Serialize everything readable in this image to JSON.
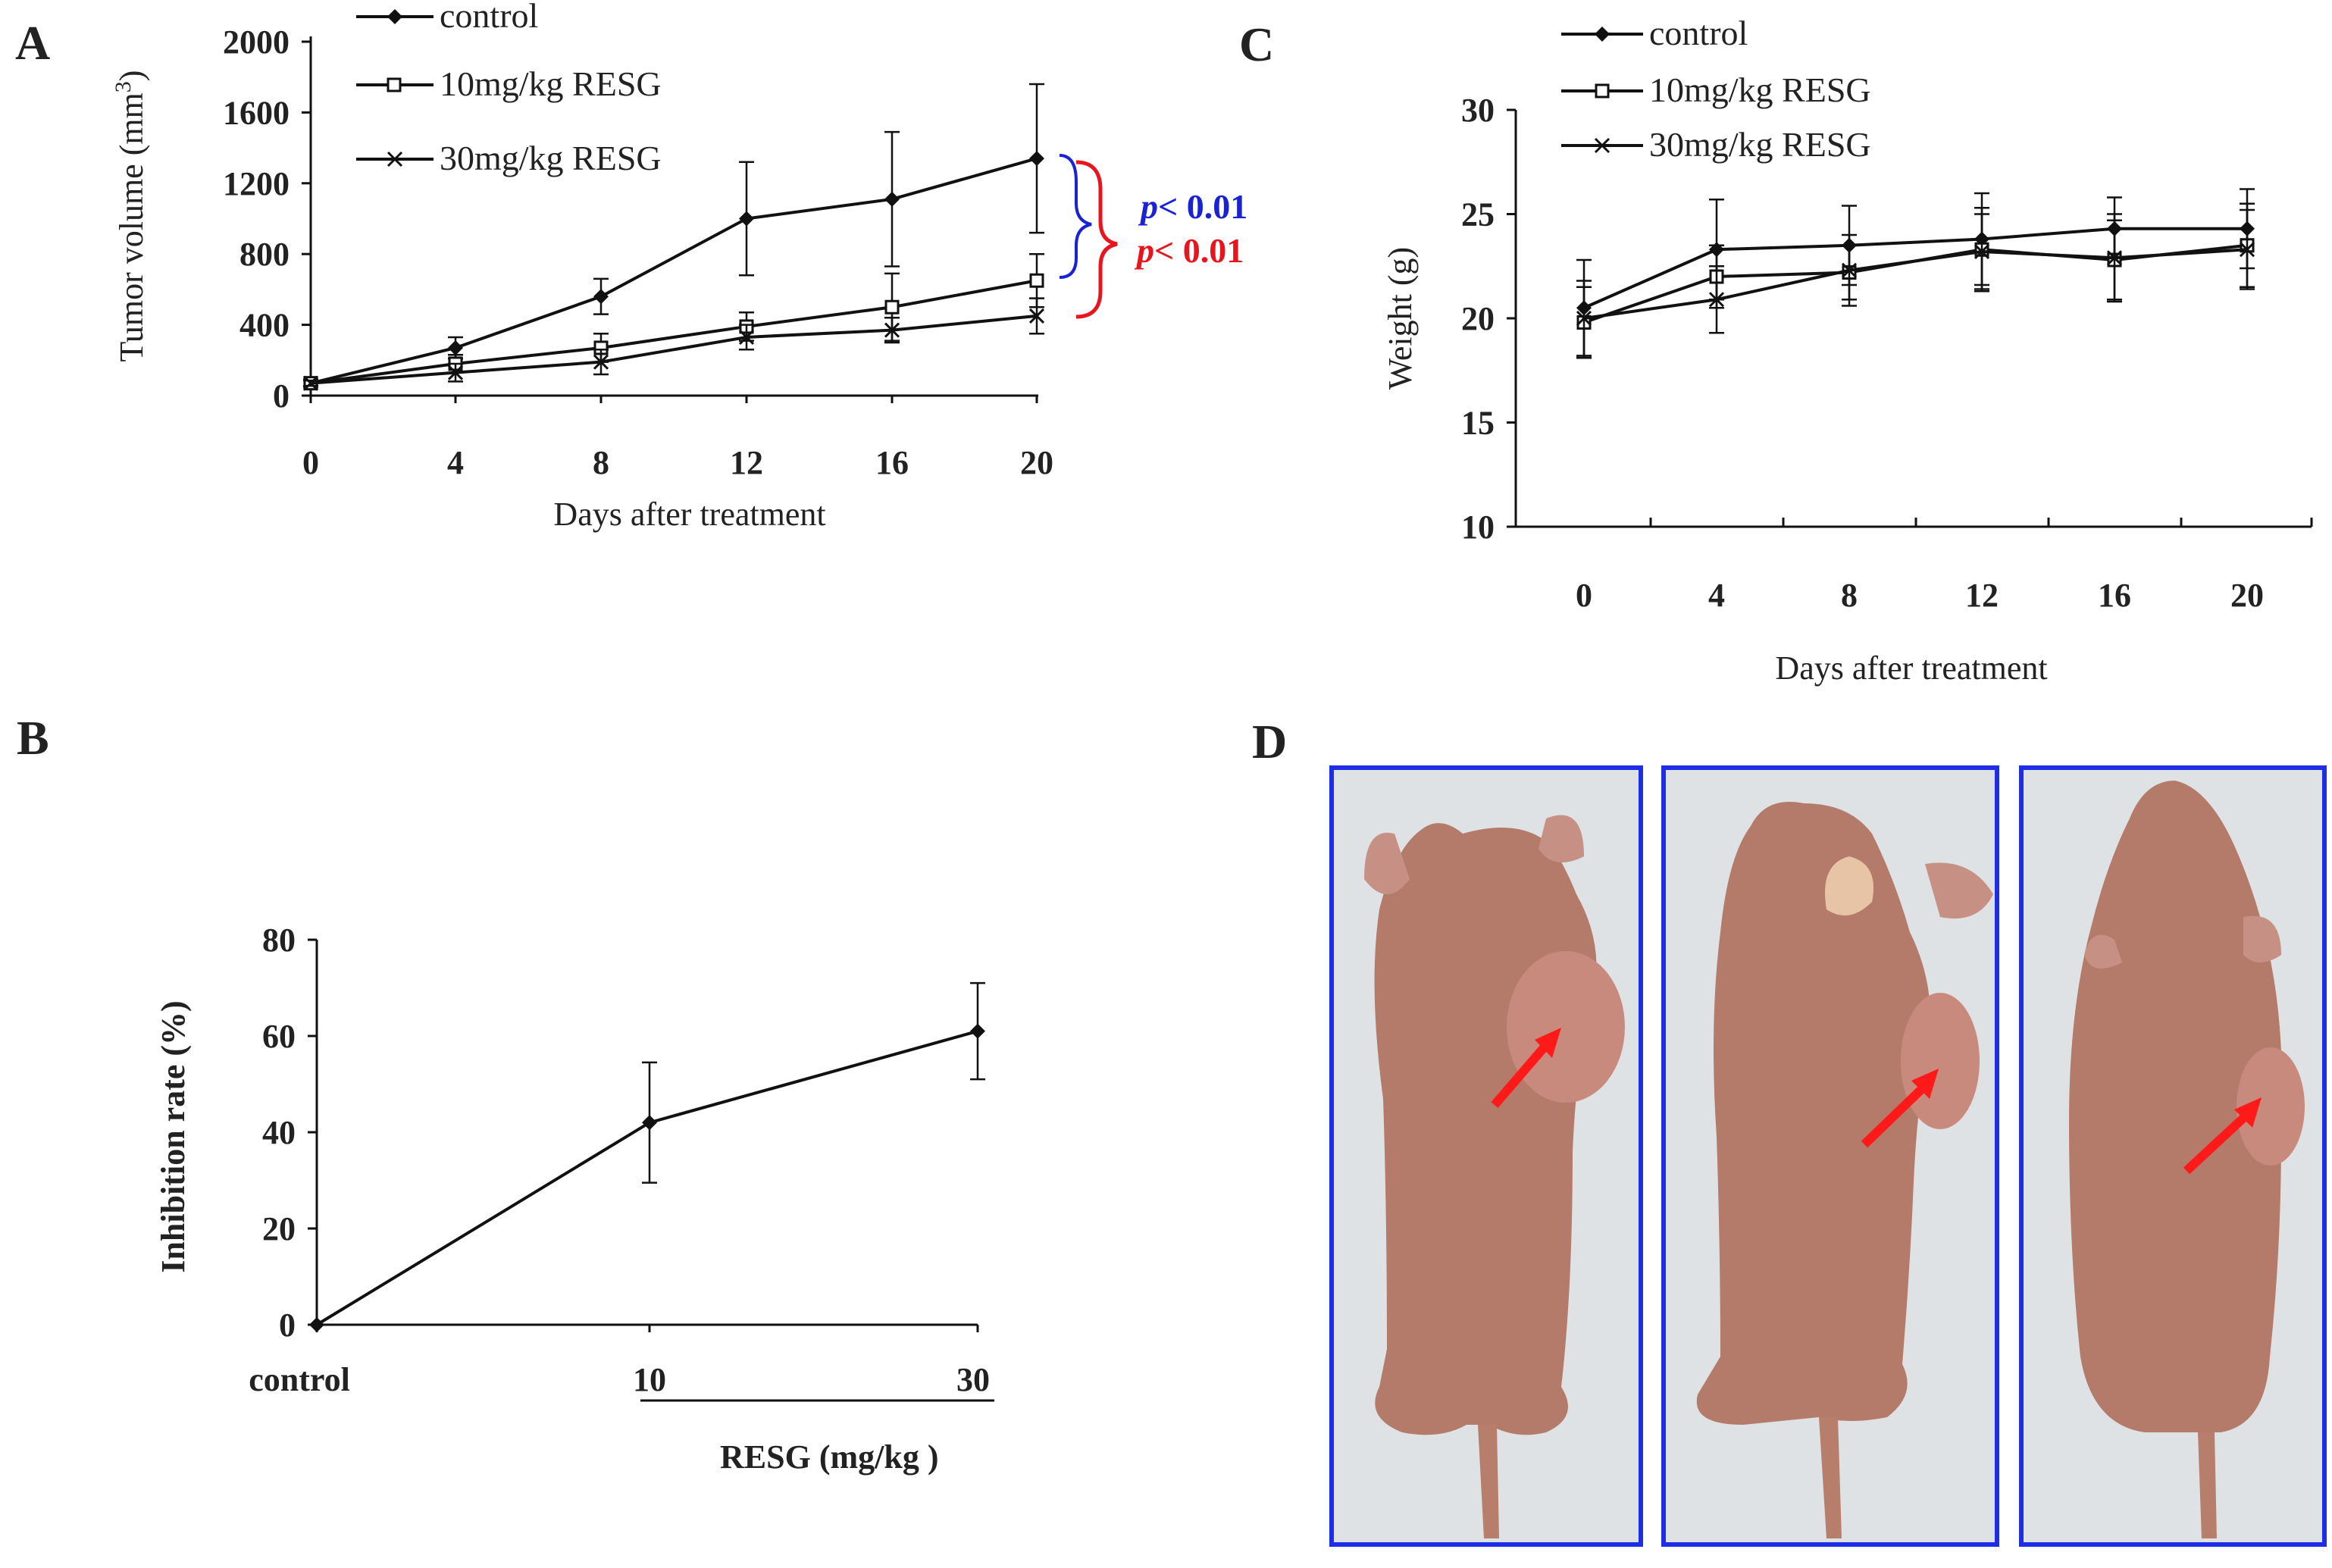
{
  "panels": {
    "A": "A",
    "B": "B",
    "C": "C",
    "D": "D"
  },
  "colors": {
    "line": "#111111",
    "blue_brace": "#1a22d6",
    "red_brace": "#e8141e",
    "photo_frame": "#1e2ee6",
    "photo_bg": "#dfe2e4",
    "mouse_skin": "#b47a6a",
    "tumor": "#c98a7e",
    "arrow": "#ff1a1a"
  },
  "chart_data": [
    {
      "id": "A",
      "type": "line",
      "x": [
        0,
        4,
        8,
        12,
        16,
        20
      ],
      "xlabel": "Days after treatment",
      "ylabel": "Tumor volume (mm³)",
      "ylabel_main": "Tumor volume (mm",
      "ylabel_sup": "3",
      "ylabel_close": ")",
      "ylim": [
        0,
        2000
      ],
      "yticks": [
        0,
        400,
        800,
        1200,
        1600,
        2000
      ],
      "xticks": [
        0,
        4,
        8,
        12,
        16,
        20
      ],
      "series": [
        {
          "name": "control",
          "marker": "diamond",
          "values": [
            70,
            270,
            560,
            1000,
            1110,
            1340
          ],
          "errors": [
            20,
            60,
            100,
            320,
            380,
            420
          ]
        },
        {
          "name": "10mg/kg RESG",
          "marker": "square",
          "values": [
            70,
            180,
            270,
            390,
            500,
            650
          ],
          "errors": [
            20,
            50,
            80,
            80,
            190,
            150
          ]
        },
        {
          "name": "30mg/kg RESG",
          "marker": "x",
          "values": [
            70,
            130,
            190,
            330,
            370,
            450
          ],
          "errors": [
            15,
            50,
            70,
            70,
            70,
            100
          ]
        }
      ],
      "annotations": [
        {
          "prefix": "p",
          "text": "< 0.01",
          "color": "blue"
        },
        {
          "prefix": "p",
          "text": "< 0.01",
          "color": "red"
        }
      ]
    },
    {
      "id": "B",
      "type": "line",
      "categories": [
        "control",
        "10",
        "30"
      ],
      "xlabel": "RESG (mg/kg )",
      "ylabel": "Inhibition rate (%)",
      "ylim": [
        0,
        80
      ],
      "yticks": [
        0,
        20,
        40,
        60,
        80
      ],
      "series": [
        {
          "name": "Inhibition rate",
          "marker": "diamond",
          "values": [
            0,
            42,
            61
          ],
          "errors": [
            0,
            12.5,
            10
          ]
        }
      ]
    },
    {
      "id": "C",
      "type": "line",
      "x": [
        0,
        4,
        8,
        12,
        16,
        20
      ],
      "xlabel": "Days after treatment",
      "ylabel": "Weight (g)",
      "ylim": [
        10,
        30
      ],
      "yticks": [
        10,
        15,
        20,
        25,
        30
      ],
      "xticks": [
        0,
        4,
        8,
        12,
        16,
        20
      ],
      "series": [
        {
          "name": "control",
          "marker": "diamond",
          "values": [
            20.5,
            23.3,
            23.5,
            23.8,
            24.3,
            24.3
          ],
          "errors": [
            2.3,
            2.4,
            1.9,
            2.2,
            1.5,
            1.9
          ]
        },
        {
          "name": "10mg/kg RESG",
          "marker": "square",
          "values": [
            19.8,
            22.0,
            22.2,
            23.3,
            22.8,
            23.5
          ],
          "errors": [
            1.7,
            1.5,
            1.3,
            2.0,
            1.9,
            2.0
          ]
        },
        {
          "name": "30mg/kg RESG",
          "marker": "x",
          "values": [
            20.0,
            20.9,
            22.3,
            23.2,
            22.9,
            23.3
          ],
          "errors": [
            1.8,
            1.6,
            1.7,
            1.8,
            2.1,
            1.9
          ]
        }
      ]
    }
  ]
}
